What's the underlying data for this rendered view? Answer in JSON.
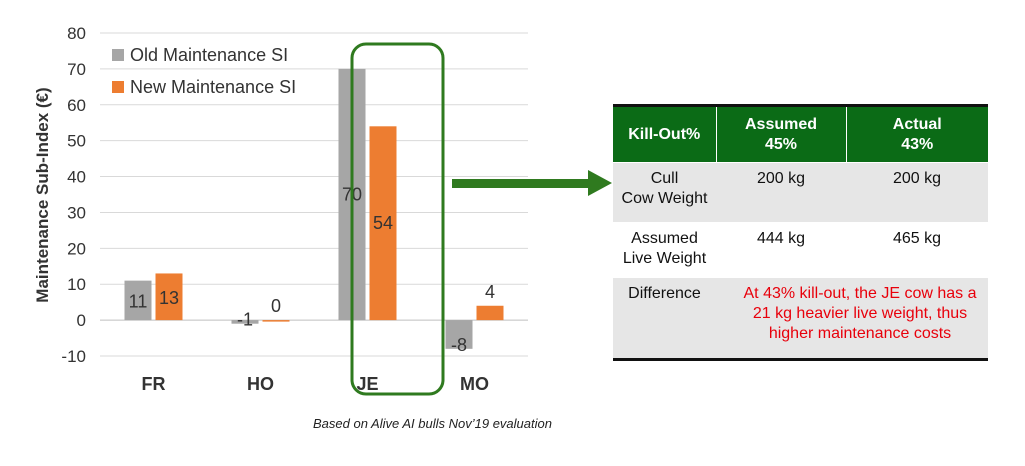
{
  "chart_data": {
    "type": "bar",
    "categories": [
      "FR",
      "HO",
      "JE",
      "MO"
    ],
    "series": [
      {
        "name": "Old Maintenance SI",
        "values": [
          11,
          -1,
          70,
          -8
        ],
        "color": "#a6a6a6"
      },
      {
        "name": "New Maintenance SI",
        "values": [
          13,
          0,
          54,
          4
        ],
        "color": "#ed7d31"
      }
    ],
    "ylabel": "Maintenance Sub-Index (€)",
    "ylim": [
      -10,
      80
    ],
    "yticks": [
      -10,
      0,
      10,
      20,
      30,
      40,
      50,
      60,
      70,
      80
    ],
    "grid": true,
    "legend": "top-left",
    "highlight_category": "JE",
    "highlight_color": "#2f7a1f"
  },
  "table": {
    "headers": [
      "Kill-Out%",
      "Assumed\n45%",
      "Actual\n43%"
    ],
    "rows": [
      {
        "label": "Cull\nCow Weight",
        "assumed": "200 kg",
        "actual": "200 kg"
      },
      {
        "label": "Assumed\nLive Weight",
        "assumed": "444 kg",
        "actual": "465 kg"
      }
    ],
    "difference_label": "Difference",
    "difference_note": "At 43% kill-out, the JE cow has a 21 kg heavier live weight, thus higher maintenance costs"
  },
  "footnote": "Based on Alive AI bulls Nov’19 evaluation"
}
